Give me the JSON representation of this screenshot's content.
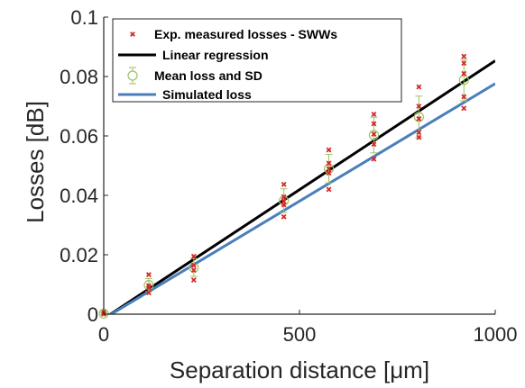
{
  "chart_data": {
    "type": "scatter",
    "xlabel": "Separation distance [μm]",
    "ylabel": "Losses [dB]",
    "xlim": [
      0,
      1000
    ],
    "ylim": [
      0,
      0.1
    ],
    "x_ticks": [
      "0",
      "500",
      "1000"
    ],
    "y_ticks": [
      "0",
      "0.02",
      "0.04",
      "0.06",
      "0.08",
      "0.1"
    ],
    "grid": false,
    "legend_position": "top-left",
    "series": [
      {
        "name": "Exp. measured losses - SWWs",
        "kind": "scatter-x",
        "color": "#d62728",
        "points": [
          [
            0,
            0.0
          ],
          [
            0,
            0.0005
          ],
          [
            115,
            0.0072
          ],
          [
            115,
            0.0089
          ],
          [
            115,
            0.0096
          ],
          [
            115,
            0.0133
          ],
          [
            230,
            0.0115
          ],
          [
            230,
            0.0148
          ],
          [
            230,
            0.0165
          ],
          [
            230,
            0.0195
          ],
          [
            460,
            0.0328
          ],
          [
            460,
            0.0368
          ],
          [
            460,
            0.038
          ],
          [
            460,
            0.0395
          ],
          [
            460,
            0.0437
          ],
          [
            575,
            0.042
          ],
          [
            575,
            0.0475
          ],
          [
            575,
            0.049
          ],
          [
            575,
            0.0508
          ],
          [
            575,
            0.0553
          ],
          [
            690,
            0.0522
          ],
          [
            690,
            0.0572
          ],
          [
            690,
            0.0606
          ],
          [
            690,
            0.0641
          ],
          [
            690,
            0.0673
          ],
          [
            805,
            0.0595
          ],
          [
            805,
            0.0612
          ],
          [
            805,
            0.0658
          ],
          [
            805,
            0.07
          ],
          [
            805,
            0.0765
          ],
          [
            920,
            0.0693
          ],
          [
            920,
            0.0732
          ],
          [
            920,
            0.081
          ],
          [
            920,
            0.0845
          ],
          [
            920,
            0.0868
          ]
        ]
      },
      {
        "name": "Linear regression",
        "kind": "line",
        "color": "#000000",
        "x": [
          0,
          1000
        ],
        "y": [
          -0.0015,
          0.0853
        ]
      },
      {
        "name": "Mean loss and SD",
        "kind": "errorbar",
        "color": "#9dc25f",
        "x": [
          0,
          115,
          230,
          460,
          575,
          690,
          805,
          920
        ],
        "y": [
          0.0002,
          0.0098,
          0.0157,
          0.0382,
          0.049,
          0.0603,
          0.0664,
          0.0788
        ],
        "sd": [
          0.0003,
          0.0022,
          0.003,
          0.004,
          0.0048,
          0.006,
          0.007,
          0.007
        ]
      },
      {
        "name": "Simulated loss",
        "kind": "line",
        "color": "#4a7ebb",
        "x": [
          0,
          1000
        ],
        "y": [
          -0.0015,
          0.0776
        ]
      }
    ]
  }
}
